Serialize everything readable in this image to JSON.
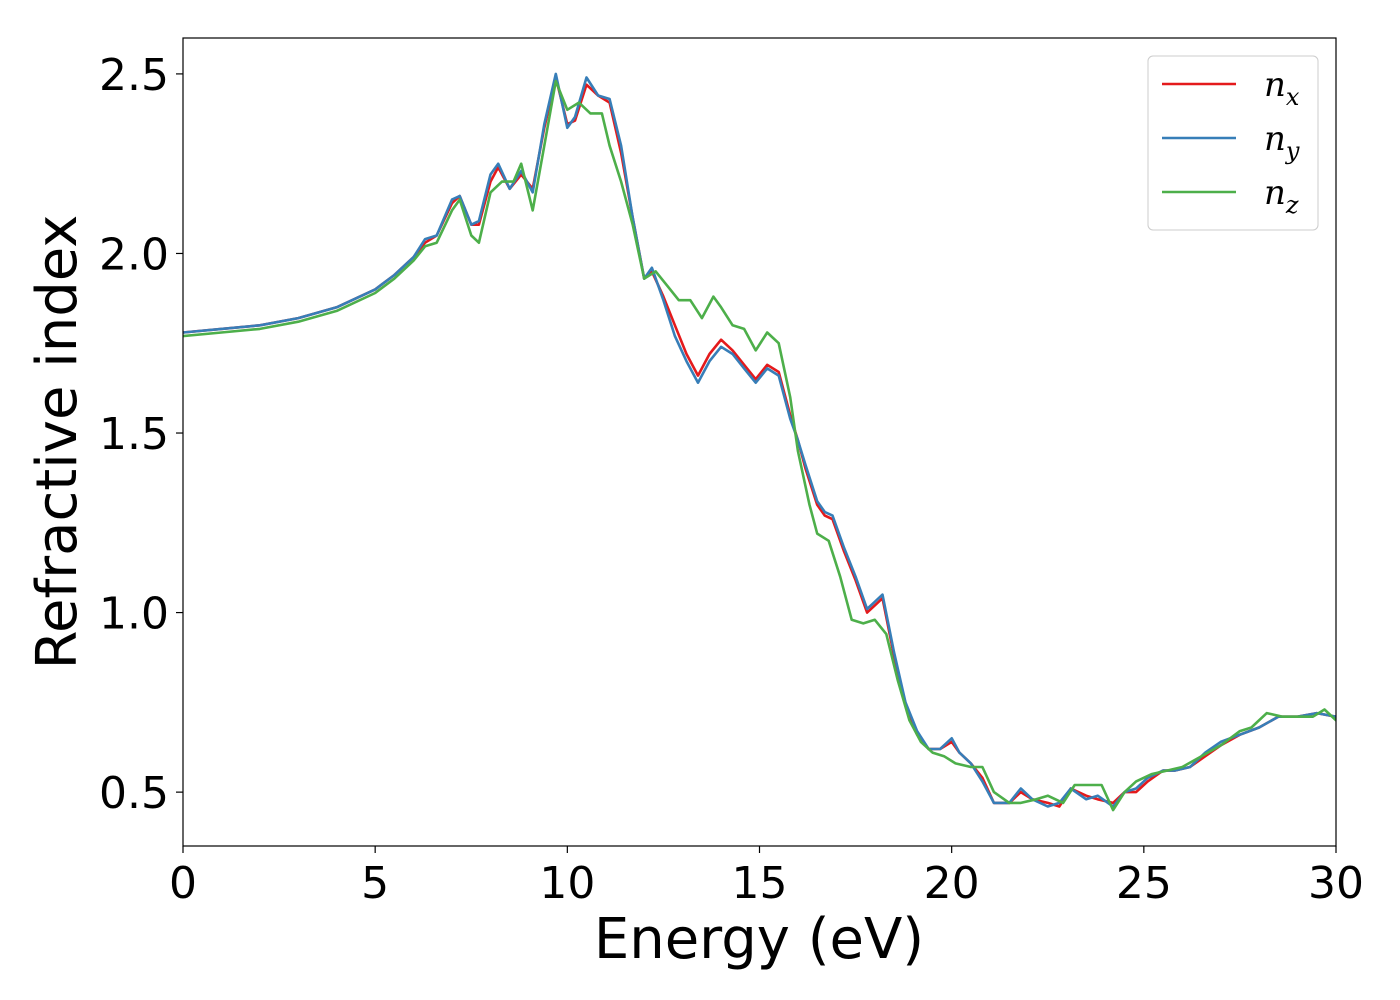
{
  "chart_data": {
    "type": "line",
    "xlabel": "Energy (eV)",
    "ylabel": "Refractive index",
    "xlim": [
      0,
      30
    ],
    "ylim": [
      0.35,
      2.6
    ],
    "xticks": [
      0,
      5,
      10,
      15,
      20,
      25,
      30
    ],
    "xtick_labels": [
      "0",
      "5",
      "10",
      "15",
      "20",
      "25",
      "30"
    ],
    "yticks": [
      0.5,
      1.0,
      1.5,
      2.0,
      2.5
    ],
    "ytick_labels": [
      "0.5",
      "1.0",
      "1.5",
      "2.0",
      "2.5"
    ],
    "grid": false,
    "legend_position": "top-right",
    "series": [
      {
        "name": "n",
        "subscript": "x",
        "color": "#e41a1c",
        "x": [
          0,
          1,
          2,
          3,
          4,
          5,
          5.5,
          6,
          6.3,
          6.6,
          7.0,
          7.2,
          7.5,
          7.7,
          8.0,
          8.2,
          8.5,
          8.8,
          9.1,
          9.4,
          9.7,
          10.0,
          10.2,
          10.5,
          10.8,
          11.1,
          11.4,
          11.7,
          12.0,
          12.2,
          12.5,
          12.8,
          13.1,
          13.4,
          13.7,
          14.0,
          14.3,
          14.6,
          14.9,
          15.2,
          15.5,
          15.8,
          16.0,
          16.2,
          16.5,
          16.7,
          16.9,
          17.2,
          17.5,
          17.8,
          18.0,
          18.2,
          18.5,
          18.8,
          19.1,
          19.4,
          19.7,
          20.0,
          20.2,
          20.5,
          20.8,
          21.1,
          21.5,
          21.8,
          22.1,
          22.5,
          22.8,
          23.1,
          23.5,
          23.8,
          24.2,
          24.5,
          24.8,
          25.1,
          25.5,
          25.8,
          26.2,
          26.6,
          27.0,
          27.5,
          28.0,
          28.5,
          29.0,
          29.5,
          30.0
        ],
        "y": [
          1.78,
          1.79,
          1.8,
          1.82,
          1.85,
          1.9,
          1.94,
          1.99,
          2.03,
          2.05,
          2.14,
          2.16,
          2.08,
          2.08,
          2.2,
          2.24,
          2.18,
          2.22,
          2.18,
          2.35,
          2.49,
          2.36,
          2.37,
          2.47,
          2.44,
          2.42,
          2.28,
          2.1,
          1.93,
          1.95,
          1.88,
          1.8,
          1.72,
          1.66,
          1.72,
          1.76,
          1.73,
          1.69,
          1.65,
          1.69,
          1.67,
          1.55,
          1.48,
          1.4,
          1.3,
          1.27,
          1.26,
          1.17,
          1.09,
          1.0,
          1.02,
          1.04,
          0.88,
          0.74,
          0.66,
          0.62,
          0.62,
          0.64,
          0.61,
          0.58,
          0.54,
          0.47,
          0.47,
          0.5,
          0.48,
          0.47,
          0.46,
          0.51,
          0.49,
          0.48,
          0.47,
          0.5,
          0.5,
          0.53,
          0.56,
          0.56,
          0.57,
          0.6,
          0.63,
          0.66,
          0.68,
          0.71,
          0.71,
          0.72,
          0.71
        ]
      },
      {
        "name": "n",
        "subscript": "y",
        "color": "#377eb8",
        "x": [
          0,
          1,
          2,
          3,
          4,
          5,
          5.5,
          6,
          6.3,
          6.6,
          7.0,
          7.2,
          7.5,
          7.7,
          8.0,
          8.2,
          8.5,
          8.8,
          9.1,
          9.4,
          9.7,
          10.0,
          10.2,
          10.5,
          10.8,
          11.1,
          11.4,
          11.7,
          12.0,
          12.2,
          12.5,
          12.8,
          13.1,
          13.4,
          13.7,
          14.0,
          14.3,
          14.6,
          14.9,
          15.2,
          15.5,
          15.8,
          16.0,
          16.2,
          16.5,
          16.7,
          16.9,
          17.2,
          17.5,
          17.8,
          18.0,
          18.2,
          18.5,
          18.8,
          19.1,
          19.4,
          19.7,
          20.0,
          20.2,
          20.5,
          20.8,
          21.1,
          21.5,
          21.8,
          22.1,
          22.5,
          22.8,
          23.1,
          23.5,
          23.8,
          24.2,
          24.5,
          24.8,
          25.1,
          25.5,
          25.8,
          26.2,
          26.6,
          27.0,
          27.5,
          28.0,
          28.5,
          29.0,
          29.5,
          30.0
        ],
        "y": [
          1.78,
          1.79,
          1.8,
          1.82,
          1.85,
          1.9,
          1.94,
          1.99,
          2.04,
          2.05,
          2.15,
          2.16,
          2.08,
          2.09,
          2.22,
          2.25,
          2.18,
          2.23,
          2.17,
          2.36,
          2.5,
          2.35,
          2.38,
          2.49,
          2.44,
          2.43,
          2.3,
          2.1,
          1.93,
          1.96,
          1.87,
          1.77,
          1.7,
          1.64,
          1.7,
          1.74,
          1.72,
          1.68,
          1.64,
          1.68,
          1.66,
          1.54,
          1.48,
          1.41,
          1.31,
          1.28,
          1.27,
          1.18,
          1.1,
          1.01,
          1.03,
          1.05,
          0.89,
          0.75,
          0.67,
          0.62,
          0.62,
          0.65,
          0.61,
          0.58,
          0.53,
          0.47,
          0.47,
          0.51,
          0.48,
          0.46,
          0.47,
          0.51,
          0.48,
          0.49,
          0.46,
          0.5,
          0.51,
          0.54,
          0.56,
          0.56,
          0.57,
          0.61,
          0.64,
          0.66,
          0.68,
          0.71,
          0.71,
          0.72,
          0.71
        ]
      },
      {
        "name": "n",
        "subscript": "z",
        "color": "#4daf4a",
        "x": [
          0,
          1,
          2,
          3,
          4,
          5,
          5.5,
          6,
          6.3,
          6.6,
          7.0,
          7.2,
          7.5,
          7.7,
          8.0,
          8.3,
          8.6,
          8.8,
          9.1,
          9.4,
          9.7,
          10.0,
          10.3,
          10.6,
          10.9,
          11.1,
          11.4,
          11.7,
          12.0,
          12.3,
          12.6,
          12.9,
          13.2,
          13.5,
          13.8,
          14.0,
          14.3,
          14.6,
          14.9,
          15.2,
          15.5,
          15.8,
          16.0,
          16.3,
          16.5,
          16.8,
          17.1,
          17.4,
          17.7,
          18.0,
          18.3,
          18.6,
          18.9,
          19.2,
          19.5,
          19.8,
          20.1,
          20.5,
          20.8,
          21.1,
          21.5,
          21.8,
          22.2,
          22.5,
          22.9,
          23.2,
          23.6,
          23.9,
          24.2,
          24.5,
          24.8,
          25.2,
          25.6,
          26.0,
          26.5,
          27.0,
          27.5,
          27.8,
          28.2,
          28.6,
          29.0,
          29.4,
          29.7,
          30.0
        ],
        "y": [
          1.77,
          1.78,
          1.79,
          1.81,
          1.84,
          1.89,
          1.93,
          1.98,
          2.02,
          2.03,
          2.12,
          2.15,
          2.05,
          2.03,
          2.17,
          2.2,
          2.2,
          2.25,
          2.12,
          2.3,
          2.48,
          2.4,
          2.42,
          2.39,
          2.39,
          2.3,
          2.2,
          2.08,
          1.93,
          1.95,
          1.91,
          1.87,
          1.87,
          1.82,
          1.88,
          1.85,
          1.8,
          1.79,
          1.73,
          1.78,
          1.75,
          1.6,
          1.45,
          1.3,
          1.22,
          1.2,
          1.1,
          0.98,
          0.97,
          0.98,
          0.94,
          0.81,
          0.7,
          0.64,
          0.61,
          0.6,
          0.58,
          0.57,
          0.57,
          0.5,
          0.47,
          0.47,
          0.48,
          0.49,
          0.47,
          0.52,
          0.52,
          0.52,
          0.45,
          0.5,
          0.53,
          0.55,
          0.56,
          0.57,
          0.6,
          0.63,
          0.67,
          0.68,
          0.72,
          0.71,
          0.71,
          0.71,
          0.73,
          0.7
        ]
      }
    ]
  }
}
